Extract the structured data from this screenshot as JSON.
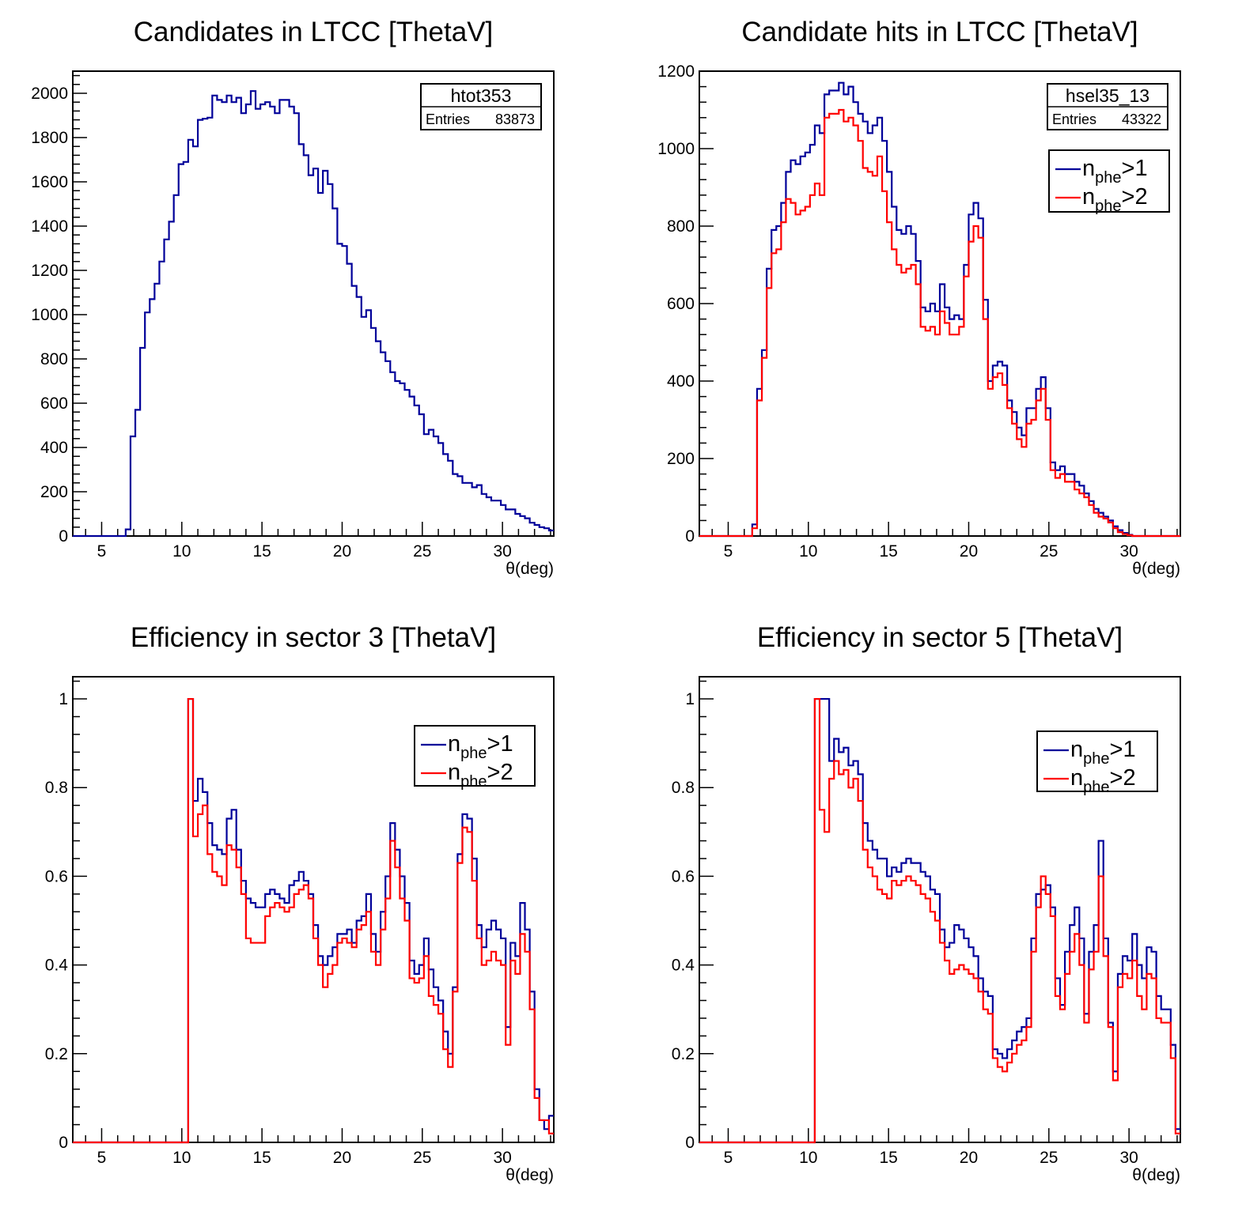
{
  "colors": {
    "blue": "#000099",
    "red": "#ff0000",
    "frame": "#000000"
  },
  "chart_data": [
    {
      "type": "line",
      "title": "Candidates in LTCC [ThetaV]",
      "xlabel": "θ(deg)",
      "ylabel": "",
      "xlim": [
        3.2,
        33.2
      ],
      "ylim": [
        0,
        2100
      ],
      "xticks": [
        5,
        10,
        15,
        20,
        25,
        30
      ],
      "yticks": [
        0,
        200,
        400,
        600,
        800,
        1000,
        1200,
        1400,
        1600,
        1800,
        2000
      ],
      "bin_start": 3.2,
      "bin_width": 0.3,
      "stats": {
        "name": "htot353",
        "label": "Entries",
        "value": "83873"
      },
      "legend": [],
      "series": [
        {
          "color": "blue",
          "values": [
            0,
            0,
            0,
            0,
            0,
            0,
            0,
            0,
            0,
            0,
            0,
            30,
            450,
            570,
            850,
            1010,
            1070,
            1140,
            1240,
            1340,
            1420,
            1540,
            1680,
            1690,
            1790,
            1760,
            1880,
            1885,
            1890,
            1990,
            1970,
            1960,
            1990,
            1960,
            1980,
            1910,
            1950,
            2010,
            1930,
            1950,
            1960,
            1940,
            1910,
            1970,
            1970,
            1940,
            1910,
            1770,
            1720,
            1630,
            1660,
            1550,
            1650,
            1590,
            1480,
            1320,
            1310,
            1230,
            1130,
            1080,
            990,
            1020,
            940,
            880,
            830,
            790,
            740,
            700,
            690,
            660,
            630,
            590,
            550,
            460,
            480,
            450,
            420,
            370,
            340,
            280,
            270,
            240,
            240,
            220,
            230,
            190,
            175,
            160,
            160,
            140,
            120,
            120,
            100,
            90,
            80,
            60,
            50,
            40,
            35,
            25,
            20,
            15,
            10,
            8,
            5,
            3,
            0,
            0,
            0,
            0,
            0,
            0,
            0,
            0,
            0,
            0,
            0,
            0
          ]
        }
      ]
    },
    {
      "type": "line",
      "title": "Candidate hits in LTCC [ThetaV]",
      "xlabel": "θ(deg)",
      "ylabel": "",
      "xlim": [
        3.2,
        33.2
      ],
      "ylim": [
        0,
        1200
      ],
      "xticks": [
        5,
        10,
        15,
        20,
        25,
        30
      ],
      "yticks": [
        0,
        200,
        400,
        600,
        800,
        1000,
        1200
      ],
      "bin_start": 3.2,
      "bin_width": 0.3,
      "stats": {
        "name": "hsel35_13",
        "label": "Entries",
        "value": "43322"
      },
      "legend": [
        {
          "label": "n",
          "sub": "phe",
          "suffix": ">1",
          "color": "blue"
        },
        {
          "label": "n",
          "sub": "phe",
          "suffix": ">2",
          "color": "red"
        }
      ],
      "series": [
        {
          "color": "blue",
          "values": [
            0,
            0,
            0,
            0,
            0,
            0,
            0,
            0,
            0,
            0,
            0,
            30,
            380,
            480,
            690,
            790,
            800,
            860,
            940,
            970,
            960,
            980,
            990,
            1010,
            1060,
            1040,
            1140,
            1150,
            1150,
            1170,
            1140,
            1160,
            1120,
            1090,
            1070,
            1040,
            1060,
            1080,
            1020,
            940,
            850,
            790,
            780,
            800,
            780,
            710,
            590,
            580,
            600,
            580,
            650,
            590,
            560,
            570,
            560,
            700,
            830,
            860,
            820,
            610,
            400,
            440,
            450,
            440,
            350,
            320,
            280,
            260,
            330,
            330,
            380,
            410,
            330,
            190,
            170,
            180,
            160,
            160,
            140,
            130,
            110,
            90,
            70,
            60,
            50,
            40,
            25,
            15,
            8,
            3,
            0,
            0,
            0,
            0,
            0,
            0,
            0,
            0,
            0,
            0,
            0,
            0,
            0,
            0,
            0,
            0,
            0,
            0,
            0,
            0,
            0,
            0,
            0,
            0,
            0,
            0,
            0,
            0,
            0,
            0,
            0,
            0,
            0
          ]
        },
        {
          "color": "red",
          "values": [
            0,
            0,
            0,
            0,
            0,
            0,
            0,
            0,
            0,
            0,
            0,
            20,
            350,
            460,
            640,
            730,
            740,
            810,
            870,
            860,
            830,
            840,
            850,
            880,
            910,
            880,
            1080,
            1090,
            1090,
            1100,
            1070,
            1080,
            1060,
            1020,
            950,
            940,
            930,
            980,
            890,
            810,
            740,
            700,
            680,
            690,
            700,
            650,
            540,
            530,
            540,
            520,
            580,
            550,
            520,
            520,
            540,
            670,
            760,
            800,
            770,
            560,
            380,
            410,
            420,
            390,
            330,
            290,
            250,
            230,
            290,
            300,
            350,
            380,
            300,
            170,
            150,
            160,
            140,
            140,
            120,
            110,
            100,
            80,
            60,
            50,
            45,
            35,
            20,
            10,
            5,
            2,
            0,
            0,
            0,
            0,
            0,
            0,
            0,
            0,
            0,
            0,
            0,
            0,
            0,
            0,
            0,
            0,
            0,
            0,
            0,
            0,
            0,
            0,
            0,
            0,
            0,
            0,
            0,
            0,
            0,
            0,
            0,
            0,
            0
          ]
        }
      ]
    },
    {
      "type": "line",
      "title": "Efficiency in sector 3 [ThetaV]",
      "xlabel": "θ(deg)",
      "ylabel": "",
      "xlim": [
        3.2,
        33.2
      ],
      "ylim": [
        0,
        1.05
      ],
      "xticks": [
        5,
        10,
        15,
        20,
        25,
        30
      ],
      "yticks": [
        0,
        0.2,
        0.4,
        0.6,
        0.8,
        1
      ],
      "bin_start": 3.2,
      "bin_width": 0.3,
      "stats": null,
      "legend": [
        {
          "label": "n",
          "sub": "phe",
          "suffix": ">1",
          "color": "blue"
        },
        {
          "label": "n",
          "sub": "phe",
          "suffix": ">2",
          "color": "red"
        }
      ],
      "series": [
        {
          "color": "blue",
          "values": [
            0,
            0,
            0,
            0,
            0,
            0,
            0,
            0,
            0,
            0,
            0,
            0,
            0,
            0,
            0,
            0,
            0,
            0,
            0,
            0,
            0,
            0,
            0,
            0,
            1,
            0.77,
            0.82,
            0.79,
            0.72,
            0.67,
            0.66,
            0.65,
            0.73,
            0.75,
            0.66,
            0.59,
            0.55,
            0.54,
            0.53,
            0.53,
            0.56,
            0.57,
            0.56,
            0.55,
            0.54,
            0.58,
            0.59,
            0.61,
            0.59,
            0.56,
            0.49,
            0.42,
            0.4,
            0.42,
            0.44,
            0.47,
            0.47,
            0.48,
            0.45,
            0.5,
            0.51,
            0.56,
            0.47,
            0.43,
            0.52,
            0.6,
            0.72,
            0.66,
            0.6,
            0.54,
            0.41,
            0.38,
            0.4,
            0.46,
            0.39,
            0.35,
            0.32,
            0.25,
            0.2,
            0.35,
            0.65,
            0.74,
            0.73,
            0.64,
            0.49,
            0.44,
            0.48,
            0.5,
            0.48,
            0.46,
            0.26,
            0.45,
            0.42,
            0.54,
            0.48,
            0.34,
            0.12,
            0.05,
            0.03,
            0.06,
            0,
            0,
            0,
            0,
            0,
            0,
            0,
            0,
            0,
            0,
            0,
            0,
            0,
            0,
            0,
            0,
            0,
            0,
            0,
            0,
            0
          ]
        },
        {
          "color": "red",
          "values": [
            0,
            0,
            0,
            0,
            0,
            0,
            0,
            0,
            0,
            0,
            0,
            0,
            0,
            0,
            0,
            0,
            0,
            0,
            0,
            0,
            0,
            0,
            0,
            0,
            1,
            0.69,
            0.74,
            0.76,
            0.65,
            0.61,
            0.6,
            0.58,
            0.67,
            0.66,
            0.62,
            0.56,
            0.46,
            0.45,
            0.45,
            0.45,
            0.51,
            0.53,
            0.54,
            0.53,
            0.52,
            0.53,
            0.56,
            0.57,
            0.58,
            0.55,
            0.46,
            0.4,
            0.35,
            0.38,
            0.4,
            0.45,
            0.46,
            0.45,
            0.44,
            0.48,
            0.49,
            0.52,
            0.43,
            0.4,
            0.48,
            0.55,
            0.68,
            0.62,
            0.55,
            0.5,
            0.37,
            0.36,
            0.37,
            0.42,
            0.33,
            0.31,
            0.29,
            0.21,
            0.17,
            0.34,
            0.63,
            0.71,
            0.7,
            0.59,
            0.46,
            0.4,
            0.41,
            0.43,
            0.41,
            0.4,
            0.22,
            0.41,
            0.38,
            0.47,
            0.43,
            0.3,
            0.1,
            0.05,
            0.05,
            0.02,
            0,
            0,
            0,
            0,
            0,
            0,
            0,
            0,
            0,
            0,
            0,
            0,
            0,
            0,
            0,
            0,
            0,
            0,
            0,
            0,
            0
          ]
        }
      ]
    },
    {
      "type": "line",
      "title": "Efficiency in sector 5 [ThetaV]",
      "xlabel": "θ(deg)",
      "ylabel": "",
      "xlim": [
        3.2,
        33.2
      ],
      "ylim": [
        0,
        1.05
      ],
      "xticks": [
        5,
        10,
        15,
        20,
        25,
        30
      ],
      "yticks": [
        0,
        0.2,
        0.4,
        0.6,
        0.8,
        1
      ],
      "bin_start": 3.2,
      "bin_width": 0.3,
      "stats": null,
      "legend": [
        {
          "label": "n",
          "sub": "phe",
          "suffix": ">1",
          "color": "blue"
        },
        {
          "label": "n",
          "sub": "phe",
          "suffix": ">2",
          "color": "red"
        }
      ],
      "series": [
        {
          "color": "blue",
          "values": [
            0,
            0,
            0,
            0,
            0,
            0,
            0,
            0,
            0,
            0,
            0,
            0,
            0,
            0,
            0,
            0,
            0,
            0,
            0,
            0,
            0,
            0,
            0,
            0,
            1,
            1,
            1,
            0.86,
            0.91,
            0.88,
            0.89,
            0.85,
            0.86,
            0.83,
            0.72,
            0.68,
            0.66,
            0.64,
            0.64,
            0.6,
            0.62,
            0.61,
            0.63,
            0.64,
            0.63,
            0.63,
            0.61,
            0.6,
            0.57,
            0.56,
            0.48,
            0.44,
            0.45,
            0.49,
            0.48,
            0.46,
            0.44,
            0.42,
            0.37,
            0.34,
            0.33,
            0.21,
            0.2,
            0.19,
            0.21,
            0.23,
            0.25,
            0.26,
            0.28,
            0.46,
            0.56,
            0.57,
            0.58,
            0.53,
            0.37,
            0.31,
            0.43,
            0.49,
            0.53,
            0.46,
            0.29,
            0.43,
            0.49,
            0.68,
            0.46,
            0.27,
            0.16,
            0.38,
            0.42,
            0.41,
            0.47,
            0.4,
            0.37,
            0.44,
            0.43,
            0.33,
            0.3,
            0.3,
            0.22,
            0.03,
            0.02,
            0,
            0,
            0,
            0,
            0,
            0,
            0,
            0,
            0,
            0,
            0,
            0,
            0,
            0,
            0,
            0,
            0,
            0,
            0,
            0,
            0,
            0
          ]
        },
        {
          "color": "red",
          "values": [
            0,
            0,
            0,
            0,
            0,
            0,
            0,
            0,
            0,
            0,
            0,
            0,
            0,
            0,
            0,
            0,
            0,
            0,
            0,
            0,
            0,
            0,
            0,
            0,
            1,
            0.75,
            0.7,
            0.82,
            0.86,
            0.83,
            0.84,
            0.8,
            0.82,
            0.77,
            0.66,
            0.62,
            0.6,
            0.57,
            0.56,
            0.55,
            0.59,
            0.58,
            0.59,
            0.6,
            0.59,
            0.58,
            0.56,
            0.55,
            0.52,
            0.5,
            0.45,
            0.41,
            0.38,
            0.39,
            0.4,
            0.39,
            0.38,
            0.37,
            0.34,
            0.3,
            0.29,
            0.19,
            0.17,
            0.16,
            0.18,
            0.2,
            0.22,
            0.23,
            0.26,
            0.43,
            0.53,
            0.6,
            0.56,
            0.51,
            0.33,
            0.3,
            0.38,
            0.43,
            0.47,
            0.4,
            0.27,
            0.39,
            0.43,
            0.6,
            0.42,
            0.26,
            0.14,
            0.35,
            0.38,
            0.37,
            0.41,
            0.33,
            0.3,
            0.38,
            0.37,
            0.28,
            0.27,
            0.27,
            0.19,
            0.02,
            0.02,
            0,
            0,
            0,
            0,
            0,
            0,
            0,
            0,
            0,
            0,
            0,
            0,
            0,
            0,
            0,
            0,
            0,
            0,
            0,
            0,
            0,
            0
          ]
        }
      ]
    }
  ]
}
